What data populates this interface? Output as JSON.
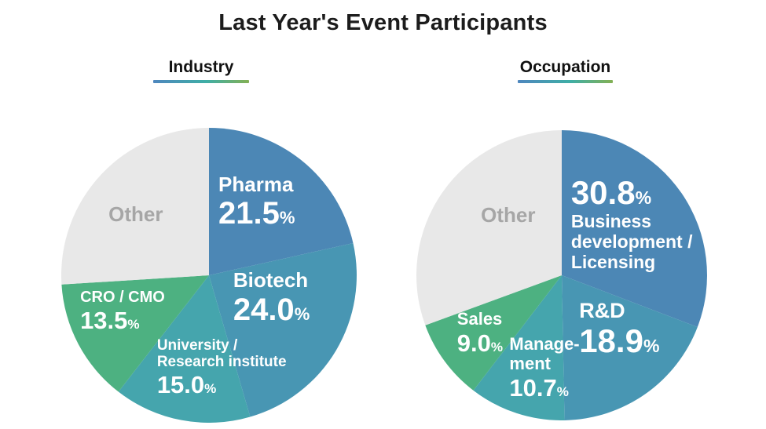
{
  "title": "Last Year's Event Participants",
  "percent_sign": "%",
  "underline_gradient": [
    "#4E86BE",
    "#3FAEA6",
    "#83B054"
  ],
  "chart_data": [
    {
      "type": "pie",
      "title": "Industry",
      "start_angle_deg": 0,
      "direction": "clockwise",
      "legend_position": "none",
      "slices": [
        {
          "name": "pharma",
          "label": "Pharma",
          "value": 21.5,
          "color": "#4C87B5"
        },
        {
          "name": "biotech",
          "label": "Biotech",
          "value": 24.0,
          "color": "#4896B3"
        },
        {
          "name": "university",
          "label": "University / Research institute",
          "value": 15.0,
          "color": "#45A5AD"
        },
        {
          "name": "cro-cmo",
          "label": "CRO / CMO",
          "value": 13.5,
          "color": "#4DB181"
        },
        {
          "name": "other",
          "label": "Other",
          "value": 26.0,
          "color": "#E8E8E8"
        }
      ],
      "labels": [
        {
          "name": "pharma",
          "x": 53.2,
          "y": 15.4,
          "lines": [
            {
              "t": "Pharma",
              "s": 26
            },
            {
              "t": "21.5",
              "s": 40,
              "pct": true
            }
          ]
        },
        {
          "name": "biotech",
          "x": 58.2,
          "y": 48.0,
          "lines": [
            {
              "t": "Biotech",
              "s": 26
            },
            {
              "t": "24.0",
              "s": 40,
              "pct": true
            }
          ]
        },
        {
          "name": "university",
          "x": 32.4,
          "y": 71.0,
          "lines": [
            {
              "t": "University /",
              "s": 19
            },
            {
              "t": "Research institute",
              "s": 19
            },
            {
              "t": "15.0",
              "s": 31,
              "pct": true
            }
          ]
        },
        {
          "name": "cro-cmo",
          "x": 6.4,
          "y": 54.5,
          "lines": [
            {
              "t": "CRO / CMO",
              "s": 20
            },
            {
              "t": "13.5",
              "s": 31,
              "pct": true
            }
          ]
        },
        {
          "name": "other",
          "x": 16.0,
          "y": 25.5,
          "color": "#A6A6A6",
          "lines": [
            {
              "t": "Other",
              "s": 26
            }
          ]
        }
      ]
    },
    {
      "type": "pie",
      "title": "Occupation",
      "start_angle_deg": 0,
      "direction": "clockwise",
      "legend_position": "none",
      "slices": [
        {
          "name": "business-development-licensing",
          "label": "Business development / Licensing",
          "value": 30.8,
          "color": "#4C87B5"
        },
        {
          "name": "rd",
          "label": "R&D",
          "value": 18.9,
          "color": "#4896B3"
        },
        {
          "name": "management",
          "label": "Management",
          "value": 10.7,
          "color": "#45A5AD"
        },
        {
          "name": "sales",
          "label": "Sales",
          "value": 9.0,
          "color": "#4DB181"
        },
        {
          "name": "other",
          "label": "Other",
          "value": 30.6,
          "color": "#E8E8E8"
        }
      ],
      "labels": [
        {
          "name": "business-development-licensing",
          "x": 53.2,
          "y": 15.0,
          "lines": [
            {
              "t": "30.8",
              "s": 42,
              "pct": true
            },
            {
              "t": "Business",
              "s": 23
            },
            {
              "t": "development /",
              "s": 23
            },
            {
              "t": "Licensing",
              "s": 23
            }
          ]
        },
        {
          "name": "rd",
          "x": 56.0,
          "y": 58.0,
          "lines": [
            {
              "t": "R&D",
              "s": 27
            },
            {
              "t": "18.9",
              "s": 42,
              "pct": true
            }
          ]
        },
        {
          "name": "management",
          "x": 32.0,
          "y": 70.5,
          "lines": [
            {
              "t": "Manage-",
              "s": 22
            },
            {
              "t": "ment",
              "s": 22
            },
            {
              "t": "10.7",
              "s": 31,
              "pct": true
            }
          ]
        },
        {
          "name": "sales",
          "x": 14.0,
          "y": 62.0,
          "lines": [
            {
              "t": "Sales",
              "s": 22
            },
            {
              "t": "9.0",
              "s": 31,
              "pct": true
            }
          ]
        },
        {
          "name": "other",
          "x": 22.2,
          "y": 25.5,
          "color": "#A6A6A6",
          "lines": [
            {
              "t": "Other",
              "s": 26
            }
          ]
        }
      ]
    }
  ]
}
